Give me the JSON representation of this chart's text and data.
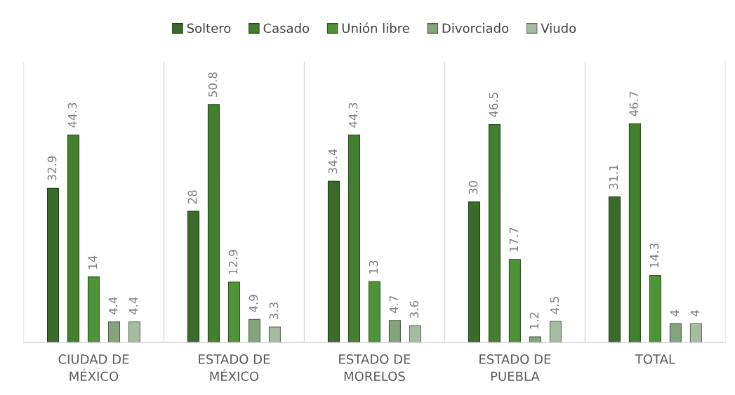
{
  "chart_data": {
    "type": "bar",
    "categories": [
      "CIUDAD DE MÉXICO",
      "ESTADO DE MÉXICO",
      "ESTADO DE MORELOS",
      "ESTADO DE PUEBLA",
      "TOTAL"
    ],
    "series": [
      {
        "name": "Soltero",
        "color": "#3b6b2a",
        "values": [
          32.9,
          28,
          34.4,
          30,
          31.1
        ]
      },
      {
        "name": "Casado",
        "color": "#427f2e",
        "values": [
          44.3,
          50.8,
          44.3,
          46.5,
          46.7
        ]
      },
      {
        "name": "Unión libre",
        "color": "#4f9338",
        "values": [
          14,
          12.9,
          13,
          17.7,
          14.3
        ]
      },
      {
        "name": "Divorciado",
        "color": "#84a47c",
        "values": [
          4.4,
          4.9,
          4.7,
          1.2,
          4
        ]
      },
      {
        "name": "Viudo",
        "color": "#a6bca0",
        "values": [
          4.4,
          3.3,
          3.6,
          4.5,
          4
        ]
      }
    ],
    "data_labels": true,
    "legend": "top",
    "grid": "x"
  }
}
